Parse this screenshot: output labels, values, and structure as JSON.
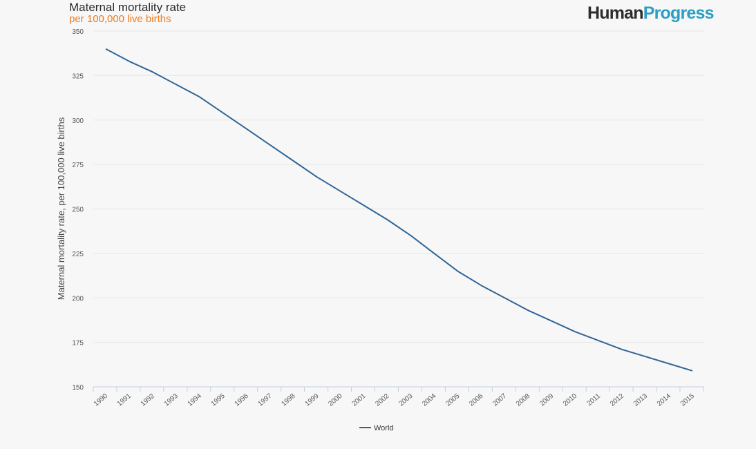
{
  "header": {
    "title": "Maternal mortality rate",
    "subtitle": "per 100,000 live births",
    "logo_part1": "Human",
    "logo_part2": "Progress"
  },
  "colors": {
    "line": "#2f6596",
    "subtitle": "#f07a1a",
    "logo_dark": "#2d2d2d",
    "logo_blue": "#2b9ec3",
    "grid": "#e6e6e6",
    "axis": "#c5cde0"
  },
  "chart_data": {
    "type": "line",
    "title": "Maternal mortality rate",
    "subtitle": "per 100,000 live births",
    "xlabel": "",
    "ylabel": "Maternal mortality rate, per 100,000 live births",
    "ylim": [
      150,
      350
    ],
    "yticks": [
      150,
      175,
      200,
      225,
      250,
      275,
      300,
      325,
      350
    ],
    "grid": true,
    "legend_position": "bottom-center",
    "x": [
      "1990",
      "1991",
      "1992",
      "1993",
      "1994",
      "1995",
      "1996",
      "1997",
      "1998",
      "1999",
      "2000",
      "2001",
      "2002",
      "2003",
      "2004",
      "2005",
      "2006",
      "2007",
      "2008",
      "2009",
      "2010",
      "2011",
      "2012",
      "2013",
      "2014",
      "2015"
    ],
    "series": [
      {
        "name": "World",
        "values": [
          340,
          333,
          327,
          320,
          313,
          304,
          295,
          286,
          277,
          268,
          260,
          252,
          244,
          235,
          225,
          215,
          207,
          200,
          193,
          187,
          181,
          176,
          171,
          167,
          163,
          159
        ]
      }
    ]
  }
}
